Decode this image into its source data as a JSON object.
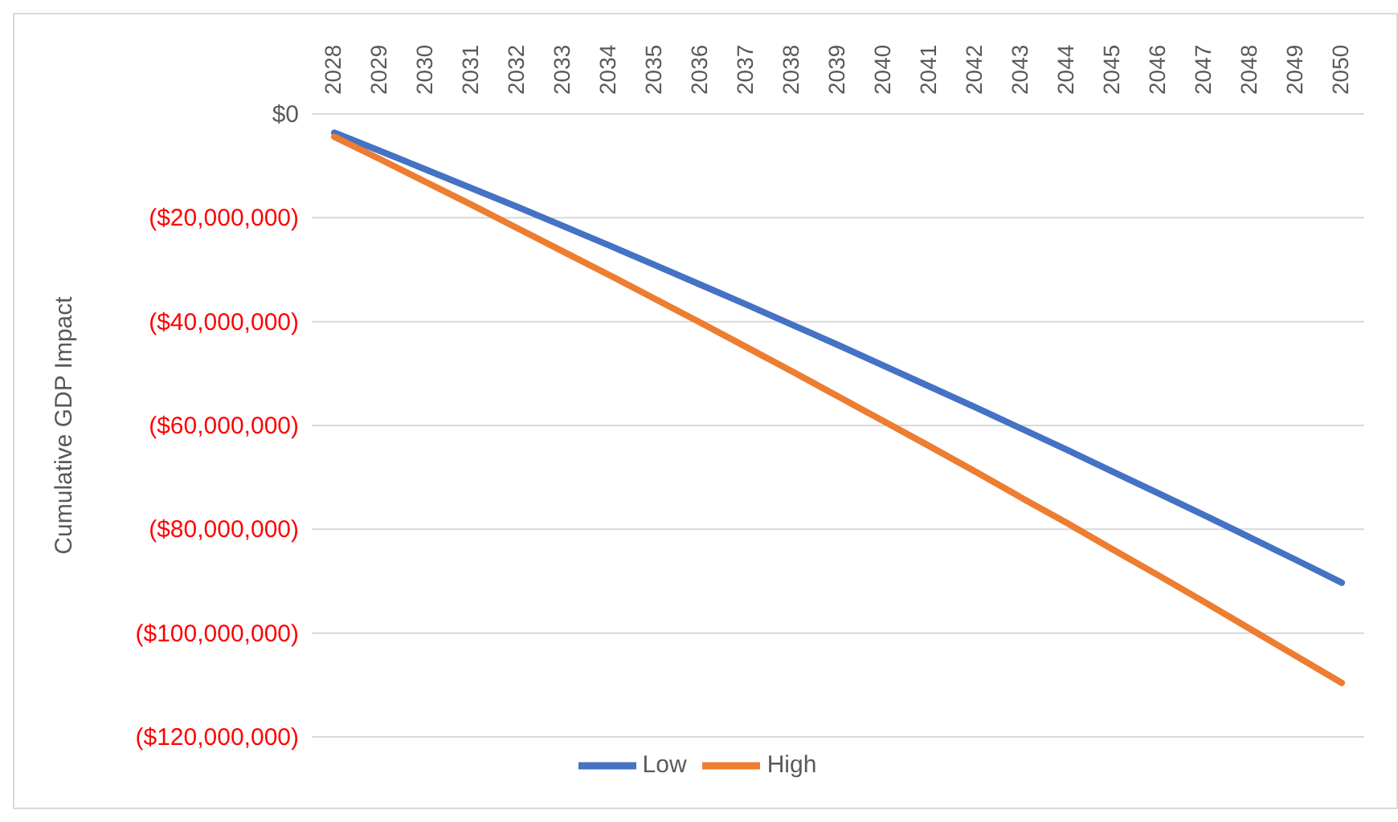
{
  "chart_data": {
    "type": "line",
    "ylabel": "Cumulative GDP Impact",
    "categories": [
      "2028",
      "2029",
      "2030",
      "2031",
      "2032",
      "2033",
      "2034",
      "2035",
      "2036",
      "2037",
      "2038",
      "2039",
      "2040",
      "2041",
      "2042",
      "2043",
      "2044",
      "2045",
      "2046",
      "2047",
      "2048",
      "2049",
      "2050"
    ],
    "series": [
      {
        "name": "Low",
        "color": "#4472c4",
        "values": [
          -3600000,
          -7100000,
          -10700000,
          -14300000,
          -17900000,
          -21600000,
          -25300000,
          -29100000,
          -32900000,
          -36700000,
          -40600000,
          -44500000,
          -48500000,
          -52500000,
          -56500000,
          -60600000,
          -64700000,
          -68900000,
          -73100000,
          -77300000,
          -81600000,
          -85900000,
          -90300000
        ]
      },
      {
        "name": "High",
        "color": "#ed7d31",
        "values": [
          -4400000,
          -8700000,
          -13100000,
          -17500000,
          -22000000,
          -26500000,
          -31000000,
          -35600000,
          -40200000,
          -44900000,
          -49600000,
          -54400000,
          -59200000,
          -64000000,
          -68900000,
          -73900000,
          -78800000,
          -83900000,
          -88900000,
          -94000000,
          -99200000,
          -104400000,
          -109600000
        ]
      }
    ],
    "ylim": [
      -120000000,
      0
    ],
    "yticks": [
      {
        "value": 0,
        "label": "$0"
      },
      {
        "value": -20000000,
        "label": "($20,000,000)"
      },
      {
        "value": -40000000,
        "label": "($40,000,000)"
      },
      {
        "value": -60000000,
        "label": "($60,000,000)"
      },
      {
        "value": -80000000,
        "label": "($80,000,000)"
      },
      {
        "value": -100000000,
        "label": "($100,000,000)"
      },
      {
        "value": -120000000,
        "label": "($120,000,000)"
      }
    ],
    "grid": "y",
    "legend": "bottom",
    "marker": "none",
    "line_style": "solid"
  }
}
